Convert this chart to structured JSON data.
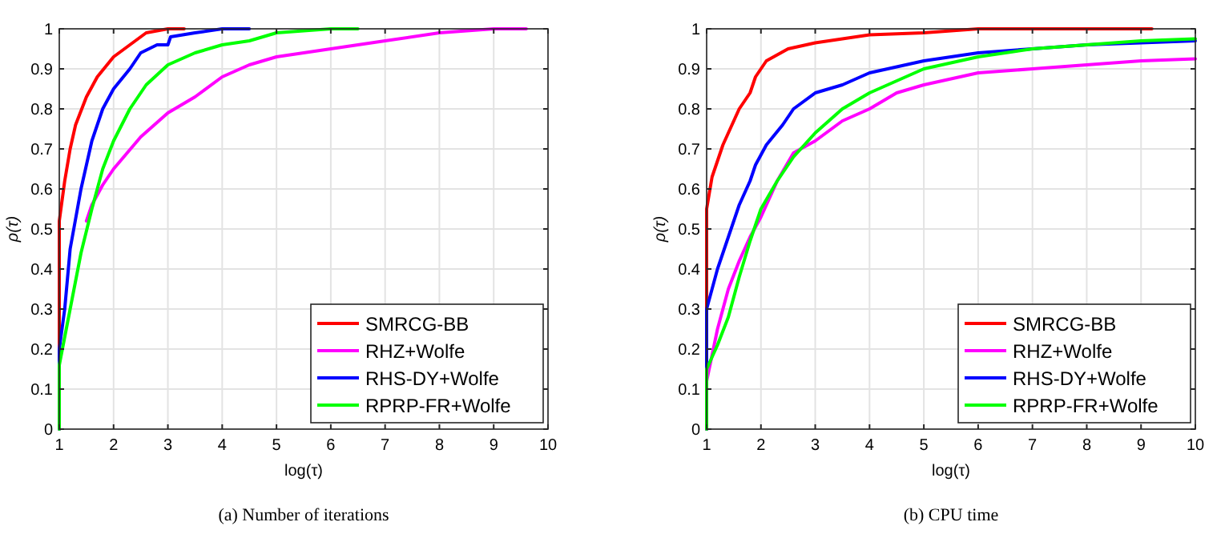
{
  "chart_data": [
    {
      "type": "line",
      "title": "(a)  Number of iterations",
      "xlabel": "log(τ)",
      "ylabel": "ρ(τ)",
      "xlim": [
        1,
        10
      ],
      "ylim": [
        0,
        1
      ],
      "xticks": [
        1,
        2,
        3,
        4,
        5,
        6,
        7,
        8,
        9,
        10
      ],
      "yticks": [
        0,
        0.1,
        0.2,
        0.3,
        0.4,
        0.5,
        0.6,
        0.7,
        0.8,
        0.9,
        1
      ],
      "grid": true,
      "legend": "bottom right",
      "series": [
        {
          "name": "SMRCG-BB",
          "color": "#ff0000",
          "x": [
            1,
            1,
            1.1,
            1.2,
            1.3,
            1.5,
            1.7,
            2,
            2.3,
            2.6,
            3,
            3.3
          ],
          "values": [
            0,
            0.52,
            0.62,
            0.7,
            0.76,
            0.83,
            0.88,
            0.93,
            0.96,
            0.99,
            1,
            1
          ]
        },
        {
          "name": "RHZ+Wolfe",
          "color": "#ff00ff",
          "x": [
            1.5,
            1.6,
            1.8,
            2,
            2.5,
            3,
            3.5,
            4,
            4.5,
            5,
            6,
            7,
            8,
            9,
            9.6
          ],
          "values": [
            0.52,
            0.56,
            0.61,
            0.65,
            0.73,
            0.79,
            0.83,
            0.88,
            0.91,
            0.93,
            0.95,
            0.97,
            0.99,
            1,
            1
          ]
        },
        {
          "name": "RHS-DY+Wolfe",
          "color": "#0000ff",
          "x": [
            1,
            1,
            1.1,
            1.2,
            1.4,
            1.6,
            1.8,
            2,
            2.3,
            2.5,
            2.8,
            3,
            3.05,
            3.5,
            4,
            4.5
          ],
          "values": [
            0,
            0.2,
            0.3,
            0.45,
            0.6,
            0.72,
            0.8,
            0.85,
            0.9,
            0.94,
            0.96,
            0.96,
            0.98,
            0.99,
            1,
            1
          ]
        },
        {
          "name": "RPRP-FR+Wolfe",
          "color": "#00ff00",
          "x": [
            1,
            1,
            1.2,
            1.4,
            1.6,
            1.8,
            2,
            2.3,
            2.6,
            3,
            3.5,
            4,
            4.5,
            5,
            6,
            6.5
          ],
          "values": [
            0,
            0.16,
            0.3,
            0.44,
            0.55,
            0.65,
            0.72,
            0.8,
            0.86,
            0.91,
            0.94,
            0.96,
            0.97,
            0.99,
            1,
            1
          ]
        }
      ]
    },
    {
      "type": "line",
      "title": "(b)  CPU time",
      "xlabel": "log(τ)",
      "ylabel": "ρ(τ)",
      "xlim": [
        1,
        10
      ],
      "ylim": [
        0,
        1
      ],
      "xticks": [
        1,
        2,
        3,
        4,
        5,
        6,
        7,
        8,
        9,
        10
      ],
      "yticks": [
        0,
        0.1,
        0.2,
        0.3,
        0.4,
        0.5,
        0.6,
        0.7,
        0.8,
        0.9,
        1
      ],
      "grid": true,
      "legend": "bottom right",
      "series": [
        {
          "name": "SMRCG-BB",
          "color": "#ff0000",
          "x": [
            1,
            1,
            1.1,
            1.3,
            1.6,
            1.8,
            1.9,
            2.1,
            2.5,
            3,
            3.5,
            4,
            5,
            6,
            9.2
          ],
          "values": [
            0,
            0.55,
            0.63,
            0.71,
            0.8,
            0.84,
            0.88,
            0.92,
            0.95,
            0.965,
            0.975,
            0.985,
            0.99,
            1,
            1
          ]
        },
        {
          "name": "RHZ+Wolfe",
          "color": "#ff00ff",
          "x": [
            1,
            1,
            1.2,
            1.4,
            1.6,
            1.8,
            2,
            2.3,
            2.6,
            3,
            3.5,
            4,
            4.5,
            5,
            6,
            7,
            8,
            9,
            10
          ],
          "values": [
            0,
            0.12,
            0.25,
            0.35,
            0.42,
            0.48,
            0.53,
            0.62,
            0.69,
            0.72,
            0.77,
            0.8,
            0.84,
            0.86,
            0.89,
            0.9,
            0.91,
            0.92,
            0.925
          ]
        },
        {
          "name": "RHS-DY+Wolfe",
          "color": "#0000ff",
          "x": [
            1,
            1,
            1.2,
            1.4,
            1.6,
            1.8,
            1.9,
            2.1,
            2.4,
            2.6,
            3,
            3.5,
            4,
            5,
            6,
            7,
            8,
            9,
            10
          ],
          "values": [
            0,
            0.3,
            0.4,
            0.48,
            0.56,
            0.62,
            0.66,
            0.71,
            0.76,
            0.8,
            0.84,
            0.86,
            0.89,
            0.92,
            0.94,
            0.95,
            0.96,
            0.965,
            0.97
          ]
        },
        {
          "name": "RPRP-FR+Wolfe",
          "color": "#00ff00",
          "x": [
            1,
            1,
            1.2,
            1.4,
            1.6,
            1.8,
            2,
            2.3,
            2.6,
            3,
            3.5,
            4,
            4.5,
            5,
            6,
            7,
            8,
            9,
            10
          ],
          "values": [
            0,
            0.15,
            0.21,
            0.28,
            0.38,
            0.47,
            0.55,
            0.62,
            0.68,
            0.74,
            0.8,
            0.84,
            0.87,
            0.9,
            0.93,
            0.95,
            0.96,
            0.97,
            0.975
          ]
        }
      ]
    }
  ]
}
